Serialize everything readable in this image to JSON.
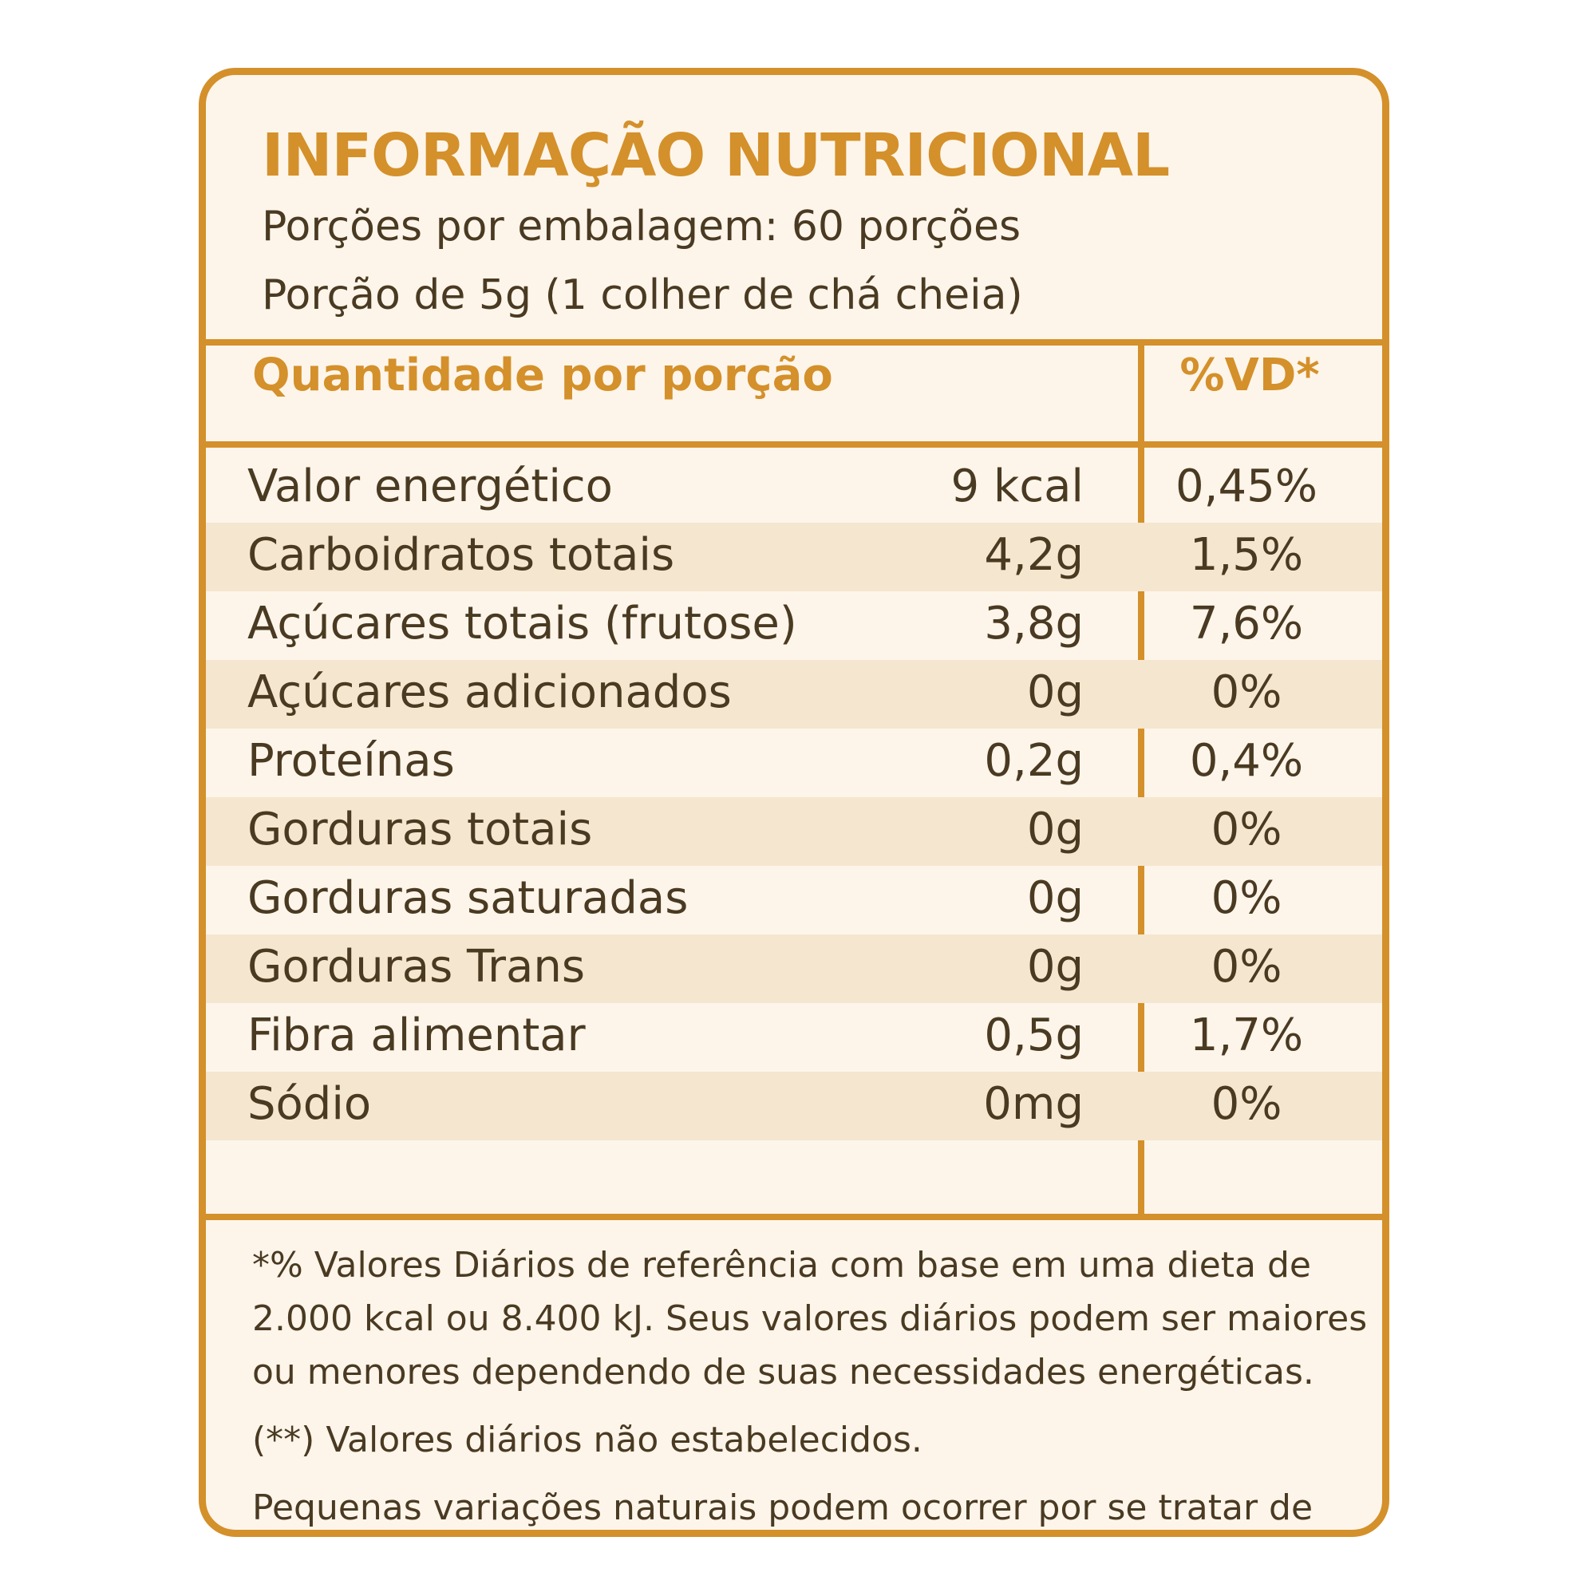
{
  "colors": {
    "accent": "#d4902a",
    "text": "#4a3a22",
    "background": "#fdf5ea",
    "stripe": "#f5e6cf"
  },
  "header": {
    "title": "INFORMAÇÃO NUTRICIONAL",
    "servings": "Porções por embalagem: 60 porções",
    "portion": "Porção de 5g (1 colher de chá cheia)"
  },
  "table": {
    "col_quantity": "Quantidade por porção",
    "col_vd": "%VD*",
    "rows": [
      {
        "name": "Valor energético",
        "amount": "9 kcal",
        "vd": "0,45%"
      },
      {
        "name": "Carboidratos totais",
        "amount": "4,2g",
        "vd": "1,5%"
      },
      {
        "name": "Açúcares totais (frutose)",
        "amount": "3,8g",
        "vd": "7,6%"
      },
      {
        "name": "Açúcares adicionados",
        "amount": "0g",
        "vd": "0%"
      },
      {
        "name": "Proteínas",
        "amount": "0,2g",
        "vd": "0,4%"
      },
      {
        "name": "Gorduras totais",
        "amount": "0g",
        "vd": "0%"
      },
      {
        "name": "Gorduras saturadas",
        "amount": "0g",
        "vd": "0%"
      },
      {
        "name": "Gorduras Trans",
        "amount": "0g",
        "vd": "0%"
      },
      {
        "name": "Fibra alimentar",
        "amount": "0,5g",
        "vd": "1,7%"
      },
      {
        "name": "Sódio",
        "amount": "0mg",
        "vd": "0%"
      }
    ]
  },
  "footnotes": {
    "vd_note": "*% Valores Diários de referência com base em uma dieta de 2.000 kcal ou 8.400 kJ. Seus valores diários podem ser maiores ou menores dependendo de suas necessidades energéticas.",
    "not_established": "(**) Valores diários não estabelecidos.",
    "variations": "Pequenas variações naturais podem ocorrer por se tratar de um alimento."
  }
}
